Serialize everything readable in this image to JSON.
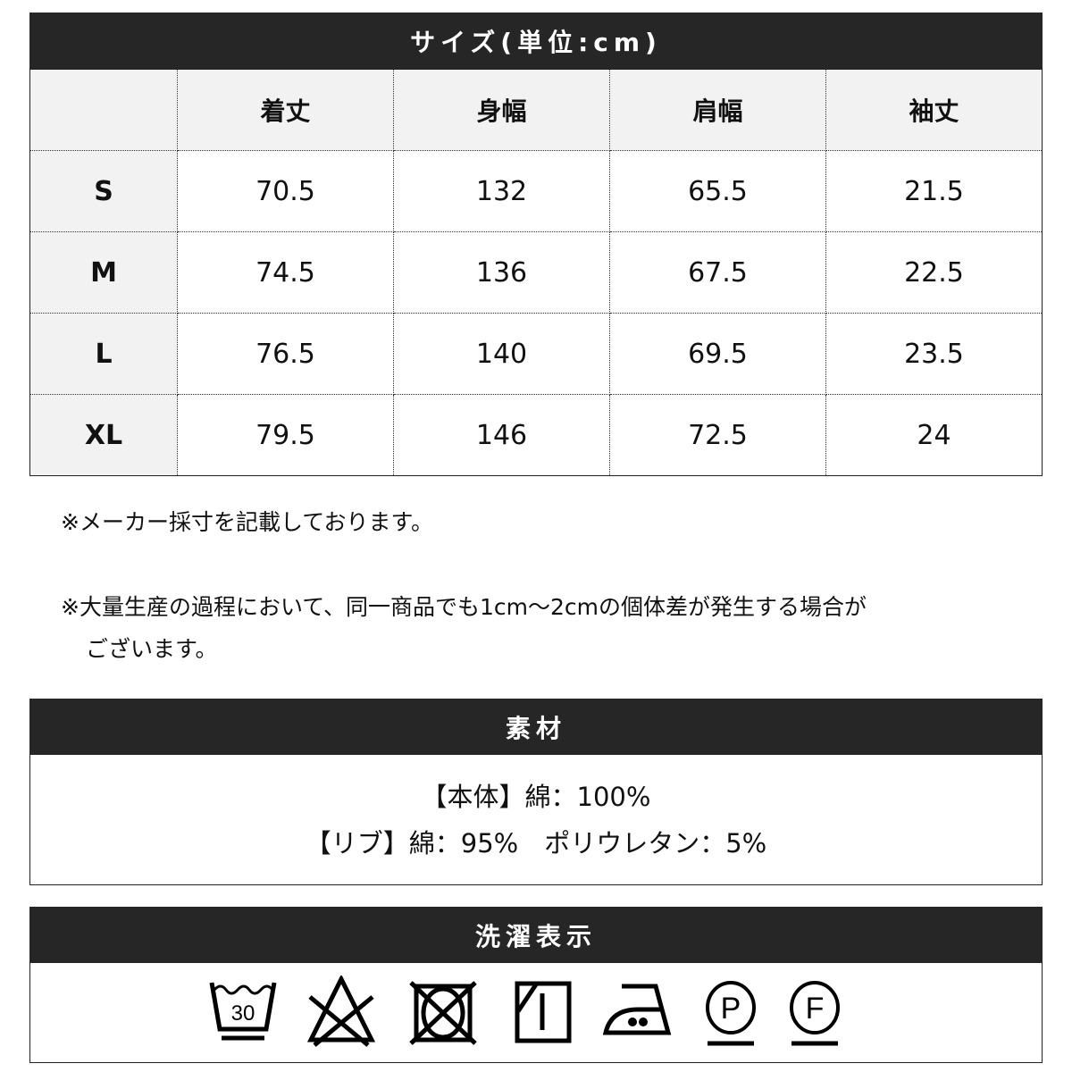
{
  "size_section": {
    "title": "サイズ(単位:cm)",
    "columns": [
      "",
      "着丈",
      "身幅",
      "肩幅",
      "袖丈"
    ],
    "rows": [
      {
        "size": "S",
        "values": [
          "70.5",
          "132",
          "65.5",
          "21.5"
        ]
      },
      {
        "size": "M",
        "values": [
          "74.5",
          "136",
          "67.5",
          "22.5"
        ]
      },
      {
        "size": "L",
        "values": [
          "76.5",
          "140",
          "69.5",
          "23.5"
        ]
      },
      {
        "size": "XL",
        "values": [
          "79.5",
          "146",
          "72.5",
          "24"
        ]
      }
    ]
  },
  "notes": [
    "※メーカー採寸を記載しております。",
    "※大量生産の過程において、同一商品でも1cm～2cmの個体差が発生する場合が",
    "ございます。"
  ],
  "material": {
    "title": "素材",
    "lines": [
      "【本体】綿：100%",
      "【リブ】綿：95%　ポリウレタン：5%"
    ]
  },
  "care": {
    "title": "洗濯表示",
    "wash_temp": "30",
    "p_label": "P",
    "f_label": "F",
    "icons": [
      "wash-30-gentle-icon",
      "no-bleach-icon",
      "no-tumble-dry-icon",
      "shade-line-dry-icon",
      "iron-medium-icon",
      "dry-clean-p-gentle-icon",
      "dry-clean-f-gentle-icon"
    ]
  }
}
